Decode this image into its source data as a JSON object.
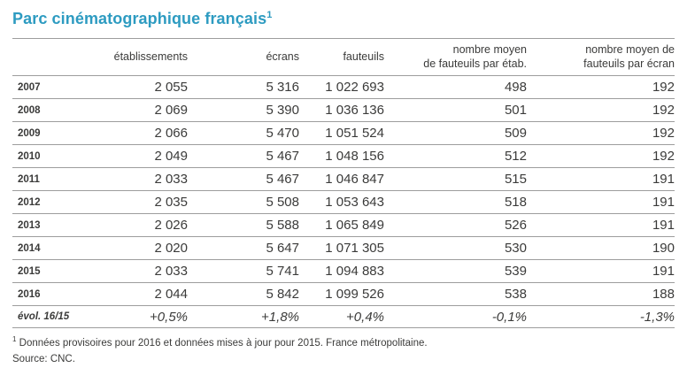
{
  "title": {
    "text": "Parc cinématographique français",
    "superscript": "1"
  },
  "table": {
    "columns": [
      "",
      "établissements",
      "écrans",
      "fauteuils",
      "nombre moyen\nde fauteuils par étab.",
      "nombre moyen de\nfauteuils par écran"
    ],
    "rows": [
      {
        "year": "2007",
        "values": [
          "2 055",
          "5 316",
          "1 022 693",
          "498",
          "192"
        ]
      },
      {
        "year": "2008",
        "values": [
          "2 069",
          "5 390",
          "1 036 136",
          "501",
          "192"
        ]
      },
      {
        "year": "2009",
        "values": [
          "2 066",
          "5 470",
          "1 051 524",
          "509",
          "192"
        ]
      },
      {
        "year": "2010",
        "values": [
          "2 049",
          "5 467",
          "1 048 156",
          "512",
          "192"
        ]
      },
      {
        "year": "2011",
        "values": [
          "2 033",
          "5 467",
          "1 046 847",
          "515",
          "191"
        ]
      },
      {
        "year": "2012",
        "values": [
          "2 035",
          "5 508",
          "1 053 643",
          "518",
          "191"
        ]
      },
      {
        "year": "2013",
        "values": [
          "2 026",
          "5 588",
          "1 065 849",
          "526",
          "191"
        ]
      },
      {
        "year": "2014",
        "values": [
          "2 020",
          "5 647",
          "1 071 305",
          "530",
          "190"
        ]
      },
      {
        "year": "2015",
        "values": [
          "2 033",
          "5 741",
          "1 094 883",
          "539",
          "191"
        ]
      },
      {
        "year": "2016",
        "values": [
          "2 044",
          "5 842",
          "1 099 526",
          "538",
          "188"
        ]
      }
    ],
    "evolution_row": {
      "label": "évol. 16/15",
      "values": [
        "+0,5%",
        "+1,8%",
        "+0,4%",
        "-0,1%",
        "-1,3%"
      ]
    }
  },
  "footnote": {
    "marker": "1",
    "text": "Données provisoires pour 2016 et données mises à jour pour 2015. France métropolitaine.",
    "source": "Source: CNC."
  },
  "colors": {
    "title": "#2d9bc1",
    "text": "#3b3b3a",
    "rule": "#9d9d9d",
    "background": "#ffffff"
  }
}
